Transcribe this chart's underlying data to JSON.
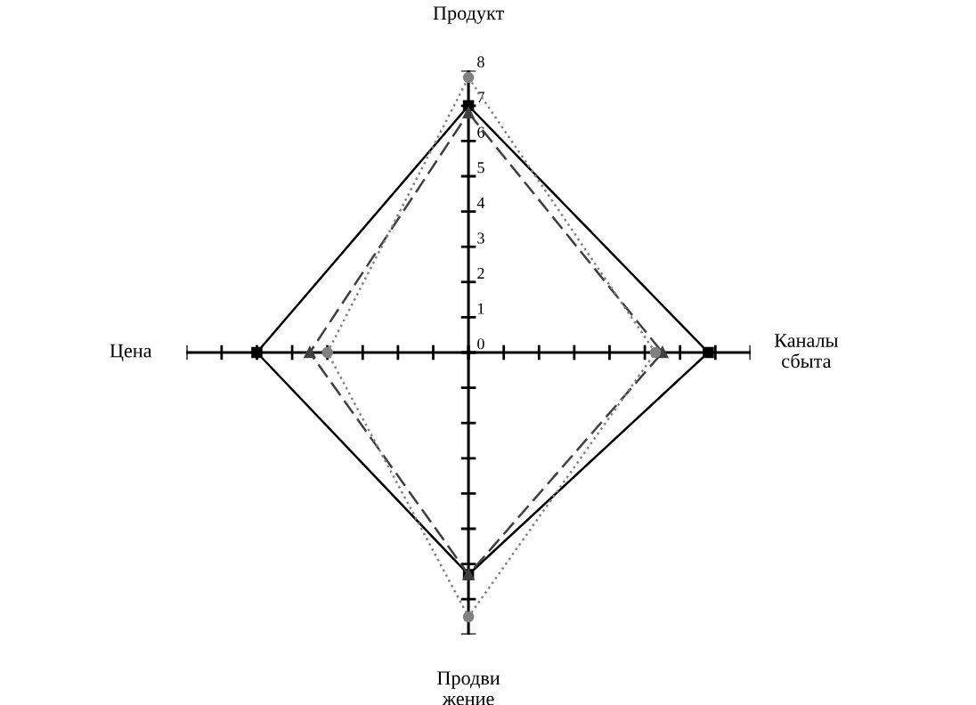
{
  "chart_data": {
    "type": "radar",
    "categories": [
      "Продукт",
      "Каналы\nсбыта",
      "Продви\nжение",
      "Цена"
    ],
    "ylim": [
      0,
      8
    ],
    "yticks": [
      0,
      1,
      2,
      3,
      4,
      5,
      6,
      7,
      8
    ],
    "grid": false,
    "legend": false,
    "series": [
      {
        "color": "#000000",
        "values": [
          7.0,
          6.8,
          6.3,
          6.0
        ],
        "marker": "square",
        "line_style": "solid"
      },
      {
        "color": "#404040",
        "values": [
          6.8,
          5.5,
          6.3,
          4.5
        ],
        "marker": "triangle",
        "line_style": "dashed"
      },
      {
        "color": "#808080",
        "values": [
          7.8,
          5.3,
          7.5,
          4.0
        ],
        "marker": "circle",
        "line_style": "dotted"
      }
    ]
  }
}
